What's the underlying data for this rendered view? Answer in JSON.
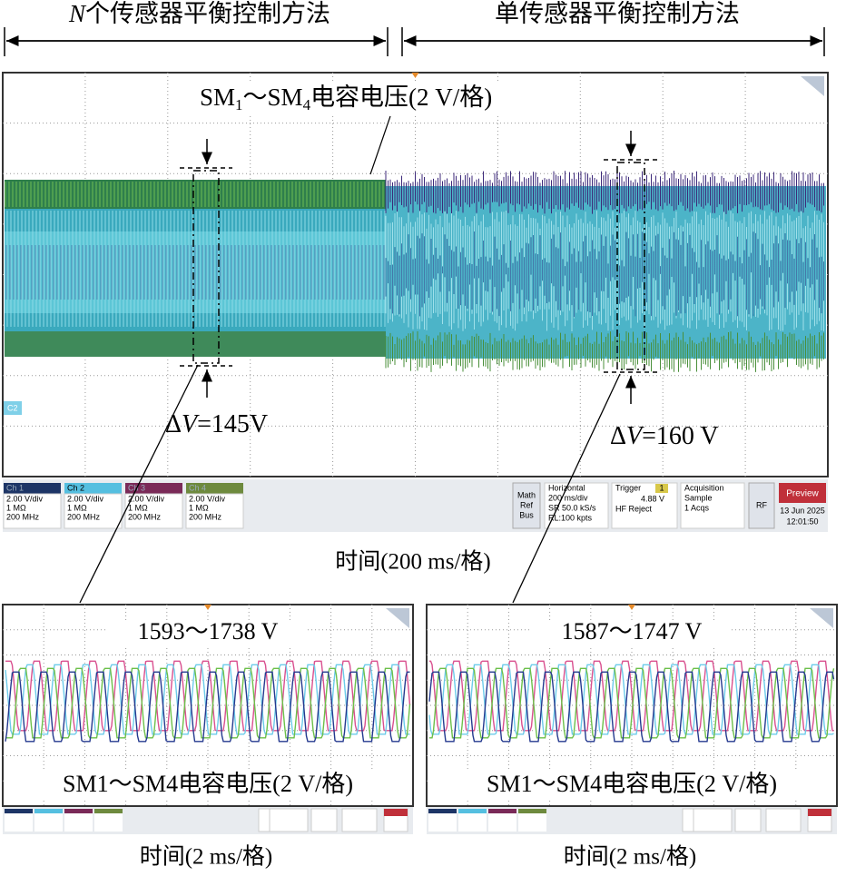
{
  "header": {
    "left_var": "N",
    "left_text": "个传感器平衡控制方法",
    "right_text": "单传感器平衡控制方法"
  },
  "main_scope": {
    "label": [
      "SM",
      "1",
      "～SM",
      "4",
      "电容电压(2 V/格)"
    ],
    "delta_left": [
      "Δ",
      "V",
      "=145V"
    ],
    "delta_right": [
      "Δ",
      "V",
      "=160 V"
    ],
    "marker": "C2",
    "channels": [
      {
        "name": "Ch 1",
        "scale": "2.00 V/div",
        "impedance": "1 MΩ",
        "bandwidth": "200 MHz"
      },
      {
        "name": "Ch 2",
        "scale": "2.00 V/div",
        "impedance": "1 MΩ",
        "bandwidth": "200 MHz"
      },
      {
        "name": "Ch 3",
        "scale": "2.00 V/div",
        "impedance": "1 MΩ",
        "bandwidth": "200 MHz"
      },
      {
        "name": "Ch 4",
        "scale": "2.00 V/div",
        "impedance": "1 MΩ",
        "bandwidth": "200 MHz"
      }
    ],
    "math": [
      "Math",
      "Ref",
      "Bus"
    ],
    "horizontal": {
      "title": "Horizontal",
      "scale": "200 ms/div",
      "rate": "SR 50.0 kS/s",
      "length": "RL:100 kpts"
    },
    "trigger": {
      "title": "Trigger",
      "source": "1",
      "level": "4.88 V",
      "mode": "HF Reject"
    },
    "acquisition": {
      "title": "Acquisition",
      "mode": "Sample",
      "count": "1 Acqs"
    },
    "rf": "RF",
    "preview": "Preview",
    "date": "13 Jun 2025",
    "time": "12:01:50",
    "x_label": "时间(200 ms/格)"
  },
  "zoom_left": {
    "range": "1593～1738 V",
    "label": "SM1～SM4电容电压(2 V/格)",
    "x_label": "时间(2 ms/格)"
  },
  "zoom_right": {
    "range": "1587～1747 V",
    "label": "SM1～SM4电容电压(2 V/格)",
    "x_label": "时间(2 ms/格)"
  }
}
